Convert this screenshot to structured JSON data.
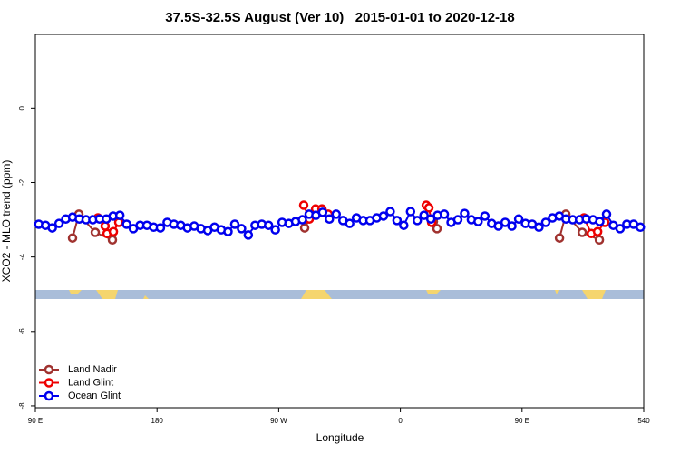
{
  "chart_data": {
    "type": "line",
    "title": "37.5S-32.5S August (Ver 10)   2015-01-01 to 2020-12-18",
    "xlabel": "Longitude",
    "ylabel": "XCO2 - MLO trend (ppm)",
    "xlim": [
      90,
      540
    ],
    "ylim": [
      -8.05,
      1.98
    ],
    "xticks": [
      {
        "value": 90,
        "label": "90 E"
      },
      180,
      {
        "value": 270,
        "label": "90 W"
      },
      {
        "value": 360,
        "label": "0"
      },
      {
        "value": 450,
        "label": "90 E"
      },
      540
    ],
    "yticks": [
      0,
      -2,
      -4,
      -6,
      -8
    ],
    "legend": "bottom-left",
    "series": [
      {
        "name": "Land Nadir",
        "color": "#a0322f",
        "x": [
          117.5,
          122.2,
          134.3,
          147,
          null,
          289.2,
          294,
          null,
          384.4,
          387.1,
          null,
          477.7,
          482.4,
          494.5,
          507.2
        ],
        "values": [
          -3.49,
          -2.85,
          -3.34,
          -3.54,
          null,
          -3.22,
          -2.9,
          null,
          -3.05,
          -3.24,
          null,
          -3.49,
          -2.85,
          -3.34,
          -3.54
        ]
      },
      {
        "name": "Land Glint",
        "color": "#ee0000",
        "x": [
          136.3,
          141.6,
          143,
          147.7,
          151.7,
          null,
          288.5,
          292.6,
          297.3,
          302,
          306.6,
          null,
          379.1,
          381.1,
          383.1,
          null,
          495.8,
          501.2,
          505.9,
          511.2
        ],
        "values": [
          -2.95,
          -3.17,
          -3.37,
          -3.32,
          -3.07,
          null,
          -2.61,
          -2.98,
          -2.71,
          -2.71,
          -2.85,
          null,
          -2.61,
          -2.68,
          -3.07,
          null,
          -2.95,
          -3.37,
          -3.32,
          -3.07
        ]
      },
      {
        "name": "Ocean Glint",
        "color": "#0000ee",
        "x": [
          92.5,
          97.5,
          102.5,
          107.5,
          112.5,
          117.5,
          122.5,
          127.5,
          132.5,
          137.5,
          142.5,
          147.5,
          152.5,
          157.5,
          162.5,
          167.5,
          172.5,
          177.5,
          182.5,
          187.5,
          192.5,
          197.5,
          202.5,
          207.5,
          212.5,
          217.5,
          222.5,
          227.5,
          232.5,
          237.5,
          242.5,
          247.5,
          252.5,
          257.5,
          262.5,
          267.5,
          272.5,
          277.5,
          282.5,
          287.5,
          292.5,
          297.5,
          302.5,
          307.5,
          312.5,
          317.5,
          322.5,
          327.5,
          332.5,
          337.5,
          342.5,
          347.5,
          352.5,
          357.5,
          362.5,
          367.5,
          372.5,
          377.5,
          382.5,
          387.5,
          392.5,
          397.5,
          402.5,
          407.5,
          412.5,
          417.5,
          422.5,
          427.5,
          432.5,
          437.5,
          442.5,
          447.5,
          452.5,
          457.5,
          462.5,
          467.5,
          472.5,
          477.5,
          482.5,
          487.5,
          492.5,
          497.5,
          502.5,
          507.5,
          512.5,
          517.5,
          522.5,
          527.5,
          532.5,
          537.5
        ],
        "values": [
          -3.12,
          -3.15,
          -3.22,
          -3.1,
          -2.98,
          -2.93,
          -2.98,
          -3.0,
          -3.0,
          -2.98,
          -2.98,
          -2.9,
          -2.88,
          -3.12,
          -3.24,
          -3.15,
          -3.15,
          -3.2,
          -3.22,
          -3.07,
          -3.12,
          -3.15,
          -3.22,
          -3.17,
          -3.24,
          -3.29,
          -3.2,
          -3.27,
          -3.32,
          -3.12,
          -3.24,
          -3.41,
          -3.15,
          -3.12,
          -3.15,
          -3.27,
          -3.07,
          -3.1,
          -3.05,
          -3.0,
          -2.85,
          -2.88,
          -2.8,
          -2.98,
          -2.85,
          -3.02,
          -3.1,
          -2.95,
          -3.02,
          -3.02,
          -2.95,
          -2.9,
          -2.78,
          -3.02,
          -3.15,
          -2.78,
          -3.02,
          -2.88,
          -2.98,
          -2.88,
          -2.85,
          -3.07,
          -3.0,
          -2.83,
          -3.0,
          -3.05,
          -2.9,
          -3.1,
          -3.17,
          -3.07,
          -3.17,
          -2.98,
          -3.1,
          -3.12,
          -3.2,
          -3.07,
          -2.95,
          -2.9,
          -2.98,
          -3.0,
          -3.0,
          -2.98,
          -3.0,
          -3.05,
          -2.85,
          -3.15,
          -3.24,
          -3.12,
          -3.12,
          -3.2
        ]
      }
    ]
  }
}
